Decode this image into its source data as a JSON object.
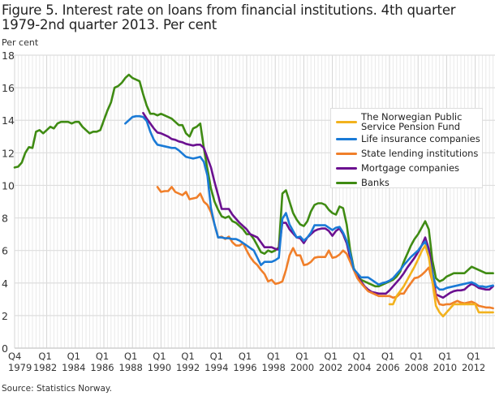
{
  "chart_data": {
    "type": "line",
    "title": "Figure 5. Interest rate on loans from financial institutions. 4th quarter 1979-2nd quarter 2013. Per cent",
    "ylabel": "Per cent",
    "xlabel": "",
    "ylim": [
      0,
      18
    ],
    "yticks": [
      0,
      2,
      4,
      6,
      8,
      10,
      12,
      14,
      16,
      18
    ],
    "x_range": [
      "1979Q4",
      "2013Q2"
    ],
    "xticks": [
      {
        "q": "Q4",
        "year": "1979"
      },
      {
        "q": "Q1",
        "year": "1982"
      },
      {
        "q": "Q1",
        "year": "1984"
      },
      {
        "q": "Q1",
        "year": "1986"
      },
      {
        "q": "Q1",
        "year": "1988"
      },
      {
        "q": "Q1",
        "year": "1990"
      },
      {
        "q": "Q1",
        "year": "1992"
      },
      {
        "q": "Q1",
        "year": "1994"
      },
      {
        "q": "Q1",
        "year": "1996"
      },
      {
        "q": "Q1",
        "year": "1998"
      },
      {
        "q": "Q1",
        "year": "2000"
      },
      {
        "q": "Q1",
        "year": "2002"
      },
      {
        "q": "Q1",
        "year": "2004"
      },
      {
        "q": "Q1",
        "year": "2006"
      },
      {
        "q": "Q1",
        "year": "2008"
      },
      {
        "q": "Q1",
        "year": "2010"
      },
      {
        "q": "Q1",
        "year": "2012"
      }
    ],
    "grid": true,
    "legend_position": "right",
    "series": [
      {
        "name": "The Norwegian Public Service Pension Fund",
        "color": "#f2b21d",
        "start": "2006Q1",
        "values": [
          2.7,
          2.7,
          3.2,
          3.5,
          3.8,
          4.2,
          4.6,
          5.0,
          5.45,
          5.95,
          6.3,
          5.6,
          4.1,
          2.6,
          2.2,
          1.95,
          2.2,
          2.45,
          2.7,
          2.7,
          2.7,
          2.7,
          2.7,
          2.7,
          2.7,
          2.2,
          2.2,
          2.2,
          2.2,
          2.2
        ]
      },
      {
        "name": "Life insurance companies",
        "color": "#1a7ad6",
        "start": "1987Q3",
        "values": [
          13.8,
          14.0,
          14.2,
          14.25,
          14.25,
          14.2,
          13.95,
          13.3,
          12.8,
          12.5,
          12.45,
          12.4,
          12.35,
          12.3,
          12.3,
          12.15,
          11.95,
          11.75,
          11.7,
          11.65,
          11.7,
          11.75,
          11.45,
          10.6,
          8.6,
          7.6,
          6.8,
          6.8,
          6.75,
          6.75,
          6.7,
          6.7,
          6.6,
          6.45,
          6.3,
          6.15,
          6.0,
          5.55,
          5.1,
          5.3,
          5.3,
          5.3,
          5.4,
          5.55,
          7.95,
          8.3,
          7.6,
          7.2,
          6.8,
          6.85,
          6.6,
          6.8,
          7.1,
          7.55,
          7.55,
          7.55,
          7.55,
          7.4,
          7.25,
          7.4,
          7.45,
          7.1,
          6.6,
          5.8,
          4.85,
          4.6,
          4.35,
          4.35,
          4.35,
          4.2,
          4.05,
          3.9,
          4.0,
          4.05,
          4.15,
          4.3,
          4.55,
          4.8,
          5.1,
          5.35,
          5.6,
          5.8,
          6.0,
          6.3,
          6.55,
          5.6,
          4.6,
          3.8,
          3.6,
          3.6,
          3.7,
          3.75,
          3.8,
          3.85,
          3.9,
          3.95,
          4.0,
          4.05,
          3.95,
          3.8,
          3.8,
          3.75,
          3.8,
          3.85
        ]
      },
      {
        "name": "State lending institutions",
        "color": "#f07f2a",
        "start": "1989Q4",
        "values": [
          9.9,
          9.6,
          9.65,
          9.65,
          9.9,
          9.6,
          9.5,
          9.4,
          9.6,
          9.15,
          9.2,
          9.25,
          9.5,
          9.0,
          8.8,
          8.35,
          7.6,
          6.8,
          6.85,
          6.7,
          6.85,
          6.5,
          6.3,
          6.3,
          6.45,
          6.0,
          5.6,
          5.3,
          5.1,
          4.8,
          4.55,
          4.1,
          4.2,
          3.95,
          4.0,
          4.1,
          4.8,
          5.7,
          6.15,
          5.7,
          5.7,
          5.1,
          5.15,
          5.3,
          5.55,
          5.6,
          5.6,
          5.6,
          6.0,
          5.55,
          5.6,
          5.75,
          6.0,
          5.8,
          5.3,
          4.8,
          4.3,
          4.0,
          3.75,
          3.5,
          3.4,
          3.3,
          3.2,
          3.2,
          3.2,
          3.2,
          3.1,
          3.15,
          3.35,
          3.35,
          3.7,
          4.0,
          4.3,
          4.35,
          4.5,
          4.7,
          4.95,
          4.1,
          3.2,
          2.7,
          2.65,
          2.7,
          2.7,
          2.8,
          2.9,
          2.8,
          2.75,
          2.8,
          2.85,
          2.75,
          2.6,
          2.55,
          2.5,
          2.5,
          2.45
        ]
      },
      {
        "name": "Mortgage companies",
        "color": "#6b1190",
        "start": "1988Q4",
        "values": [
          14.45,
          14.1,
          13.8,
          13.5,
          13.25,
          13.2,
          13.1,
          13.0,
          12.85,
          12.8,
          12.7,
          12.65,
          12.55,
          12.5,
          12.45,
          12.5,
          12.5,
          12.3,
          11.7,
          11.1,
          10.2,
          9.4,
          8.55,
          8.55,
          8.55,
          8.2,
          7.95,
          7.7,
          7.5,
          7.3,
          7.0,
          6.9,
          6.8,
          6.5,
          6.2,
          6.2,
          6.2,
          6.1,
          6.05,
          7.7,
          7.7,
          7.3,
          7.05,
          6.8,
          6.75,
          6.45,
          6.8,
          7.0,
          7.2,
          7.3,
          7.35,
          7.35,
          7.2,
          6.9,
          7.2,
          7.35,
          7.0,
          6.45,
          5.55,
          4.8,
          4.4,
          4.1,
          3.8,
          3.6,
          3.45,
          3.4,
          3.35,
          3.35,
          3.35,
          3.55,
          3.8,
          4.05,
          4.3,
          4.6,
          4.95,
          5.25,
          5.55,
          5.9,
          6.3,
          6.8,
          6.1,
          4.7,
          3.3,
          3.2,
          3.1,
          3.25,
          3.4,
          3.5,
          3.55,
          3.55,
          3.6,
          3.8,
          3.95,
          3.85,
          3.7,
          3.65,
          3.6,
          3.6,
          3.8
        ]
      },
      {
        "name": "Banks",
        "color": "#3f8b13",
        "start": "1979Q4",
        "values": [
          11.1,
          11.15,
          11.4,
          12.0,
          12.35,
          12.3,
          13.3,
          13.4,
          13.2,
          13.4,
          13.6,
          13.5,
          13.8,
          13.9,
          13.9,
          13.9,
          13.8,
          13.9,
          13.9,
          13.6,
          13.4,
          13.2,
          13.3,
          13.3,
          13.4,
          14.0,
          14.6,
          15.1,
          16.0,
          16.1,
          16.3,
          16.6,
          16.8,
          16.6,
          16.5,
          16.4,
          15.6,
          14.9,
          14.4,
          14.4,
          14.3,
          14.4,
          14.3,
          14.2,
          14.1,
          13.9,
          13.7,
          13.7,
          13.2,
          13.0,
          13.5,
          13.6,
          13.8,
          12.3,
          11.0,
          9.8,
          9.0,
          8.5,
          8.1,
          8.0,
          8.1,
          7.8,
          7.7,
          7.5,
          7.3,
          7.0,
          7.0,
          6.7,
          6.3,
          5.9,
          5.8,
          6.0,
          5.9,
          6.0,
          6.2,
          9.5,
          9.7,
          9.0,
          8.3,
          7.9,
          7.6,
          7.5,
          7.8,
          8.4,
          8.8,
          8.9,
          8.9,
          8.8,
          8.5,
          8.3,
          8.2,
          8.7,
          8.6,
          7.6,
          6.0,
          4.9,
          4.5,
          4.2,
          4.1,
          4.0,
          3.9,
          3.8,
          3.8,
          3.9,
          4.0,
          4.1,
          4.2,
          4.4,
          4.7,
          5.3,
          5.8,
          6.3,
          6.7,
          7.0,
          7.4,
          7.8,
          7.3,
          5.4,
          4.3,
          4.1,
          4.2,
          4.4,
          4.5,
          4.6,
          4.6,
          4.6,
          4.6,
          4.8,
          5.0,
          4.9,
          4.8,
          4.7,
          4.6,
          4.6,
          4.6
        ]
      }
    ]
  },
  "title": "Figure 5. Interest rate on loans from financial institutions. 4th quarter 1979-2nd quarter 2013. Per cent",
  "ylabel": "Per cent",
  "source": "Source: Statistics Norway."
}
